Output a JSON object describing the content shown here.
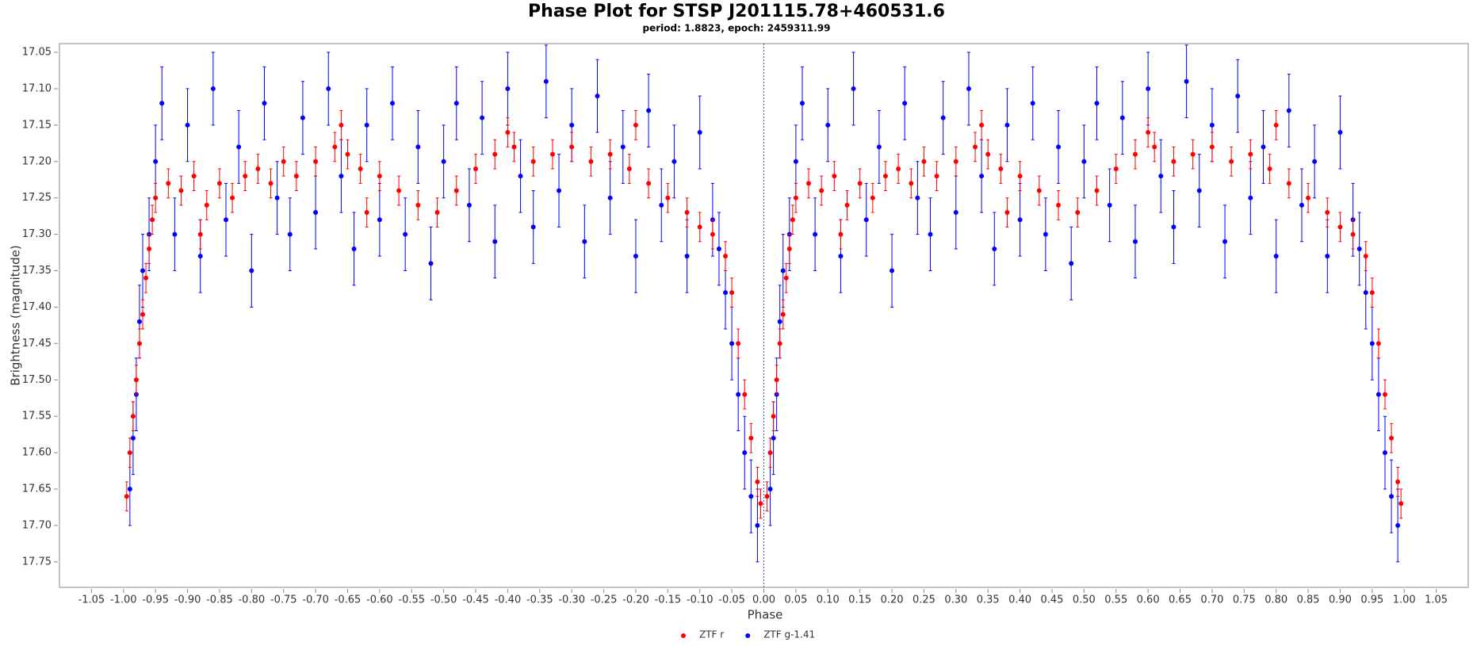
{
  "chart_data": {
    "type": "scatter",
    "title": "Phase Plot for STSP J201115.78+460531.6",
    "subtitle": "period: 1.8823, epoch: 2459311.99",
    "x_label": "Phase",
    "y_label": "Brightness (magnitude)",
    "xlim": [
      -1.1,
      1.1
    ],
    "ylim": [
      17.038,
      17.785
    ],
    "y_inverted": true,
    "grid": false,
    "reference_line_x": 0,
    "legend": "bottom",
    "xticks": [
      -1.05,
      {
        "value": -1,
        "label": "-1.00"
      },
      -0.95,
      {
        "value": -0.9,
        "label": "-0.90"
      },
      -0.85,
      {
        "value": -0.8,
        "label": "-0.80"
      },
      -0.75,
      {
        "value": -0.7,
        "label": "-0.70"
      },
      -0.65,
      {
        "value": -0.6,
        "label": "-0.60"
      },
      -0.55,
      {
        "value": -0.5,
        "label": "-0.50"
      },
      -0.45,
      {
        "value": -0.4,
        "label": "-0.40"
      },
      -0.35,
      {
        "value": -0.3,
        "label": "-0.30"
      },
      -0.25,
      {
        "value": -0.2,
        "label": "-0.20"
      },
      -0.15,
      {
        "value": -0.1,
        "label": "-0.10"
      },
      -0.05,
      {
        "value": 0,
        "label": "0.00"
      },
      0.05,
      {
        "value": 0.1,
        "label": "0.10"
      },
      0.15,
      {
        "value": 0.2,
        "label": "0.20"
      },
      0.25,
      {
        "value": 0.3,
        "label": "0.30"
      },
      0.35,
      {
        "value": 0.4,
        "label": "0.40"
      },
      0.45,
      {
        "value": 0.5,
        "label": "0.50"
      },
      0.55,
      {
        "value": 0.6,
        "label": "0.60"
      },
      0.65,
      {
        "value": 0.7,
        "label": "0.70"
      },
      0.75,
      {
        "value": 0.8,
        "label": "0.80"
      },
      0.85,
      {
        "value": 0.9,
        "label": "0.90"
      },
      0.95,
      {
        "value": 1,
        "label": "1.00"
      },
      1.05
    ],
    "yticks": [
      17.05,
      {
        "value": 17.1,
        "label": "17.10"
      },
      17.15,
      {
        "value": 17.2,
        "label": "17.20"
      },
      17.25,
      {
        "value": 17.3,
        "label": "17.30"
      },
      17.35,
      {
        "value": 17.4,
        "label": "17.40"
      },
      17.45,
      {
        "value": 17.5,
        "label": "17.50"
      },
      17.55,
      {
        "value": 17.6,
        "label": "17.60"
      },
      17.65,
      {
        "value": 17.7,
        "label": "17.70"
      },
      17.75
    ],
    "series": [
      {
        "name": "ZTF r",
        "color": "#ff0000",
        "error": 0.02,
        "x": [
          -0.995,
          -0.99,
          -0.985,
          -0.98,
          -0.975,
          -0.97,
          -0.965,
          -0.96,
          -0.955,
          -0.95,
          -0.93,
          -0.91,
          -0.89,
          -0.87,
          -0.85,
          -0.83,
          -0.81,
          -0.79,
          -0.77,
          -0.75,
          -0.73,
          -0.7,
          -0.67,
          -0.65,
          -0.63,
          -0.6,
          -0.57,
          -0.54,
          -0.51,
          -0.48,
          -0.45,
          -0.42,
          -0.39,
          -0.36,
          -0.33,
          -0.3,
          -0.27,
          -0.24,
          -0.21,
          -0.18,
          -0.15,
          -0.12,
          -0.1,
          -0.08,
          -0.06,
          -0.05,
          -0.04,
          -0.03,
          -0.02,
          -0.01,
          -0.005,
          -0.88,
          -0.62,
          -0.4,
          -0.2,
          -0.66,
          0.005,
          0.01,
          0.015,
          0.02,
          0.025,
          0.03,
          0.035,
          0.04,
          0.045,
          0.05,
          0.07,
          0.09,
          0.11,
          0.13,
          0.15,
          0.17,
          0.19,
          0.21,
          0.23,
          0.25,
          0.27,
          0.3,
          0.33,
          0.35,
          0.37,
          0.4,
          0.43,
          0.46,
          0.49,
          0.52,
          0.55,
          0.58,
          0.61,
          0.64,
          0.67,
          0.7,
          0.73,
          0.76,
          0.79,
          0.82,
          0.85,
          0.88,
          0.9,
          0.92,
          0.94,
          0.95,
          0.96,
          0.97,
          0.98,
          0.99,
          0.995,
          0.12,
          0.38,
          0.6,
          0.8,
          0.34
        ],
        "values": [
          17.66,
          17.6,
          17.55,
          17.5,
          17.45,
          17.41,
          17.36,
          17.32,
          17.28,
          17.25,
          17.23,
          17.24,
          17.22,
          17.26,
          17.23,
          17.25,
          17.22,
          17.21,
          17.23,
          17.2,
          17.22,
          17.2,
          17.18,
          17.19,
          17.21,
          17.22,
          17.24,
          17.26,
          17.27,
          17.24,
          17.21,
          17.19,
          17.18,
          17.2,
          17.19,
          17.18,
          17.2,
          17.19,
          17.21,
          17.23,
          17.25,
          17.27,
          17.29,
          17.3,
          17.33,
          17.38,
          17.45,
          17.52,
          17.58,
          17.64,
          17.67,
          17.3,
          17.27,
          17.16,
          17.15,
          17.15,
          17.66,
          17.6,
          17.55,
          17.5,
          17.45,
          17.41,
          17.36,
          17.32,
          17.28,
          17.25,
          17.23,
          17.24,
          17.22,
          17.26,
          17.23,
          17.25,
          17.22,
          17.21,
          17.23,
          17.2,
          17.22,
          17.2,
          17.18,
          17.19,
          17.21,
          17.22,
          17.24,
          17.26,
          17.27,
          17.24,
          17.21,
          17.19,
          17.18,
          17.2,
          17.19,
          17.18,
          17.2,
          17.19,
          17.21,
          17.23,
          17.25,
          17.27,
          17.29,
          17.3,
          17.33,
          17.38,
          17.45,
          17.52,
          17.58,
          17.64,
          17.67,
          17.3,
          17.27,
          17.16,
          17.15,
          17.15
        ]
      },
      {
        "name": "ZTF g-1.41",
        "color": "#0000ff",
        "error": 0.05,
        "x": [
          -0.99,
          -0.985,
          -0.98,
          -0.975,
          -0.97,
          -0.96,
          -0.95,
          -0.94,
          -0.92,
          -0.9,
          -0.88,
          -0.86,
          -0.84,
          -0.82,
          -0.8,
          -0.78,
          -0.76,
          -0.74,
          -0.72,
          -0.7,
          -0.68,
          -0.66,
          -0.64,
          -0.62,
          -0.6,
          -0.58,
          -0.56,
          -0.54,
          -0.52,
          -0.5,
          -0.48,
          -0.46,
          -0.44,
          -0.42,
          -0.4,
          -0.38,
          -0.36,
          -0.34,
          -0.32,
          -0.3,
          -0.28,
          -0.26,
          -0.24,
          -0.22,
          -0.2,
          -0.18,
          -0.16,
          -0.14,
          -0.12,
          -0.1,
          -0.08,
          -0.07,
          -0.06,
          -0.05,
          -0.04,
          -0.03,
          -0.02,
          -0.01,
          0.01,
          0.015,
          0.02,
          0.025,
          0.03,
          0.04,
          0.05,
          0.06,
          0.08,
          0.1,
          0.12,
          0.14,
          0.16,
          0.18,
          0.2,
          0.22,
          0.24,
          0.26,
          0.28,
          0.3,
          0.32,
          0.34,
          0.36,
          0.38,
          0.4,
          0.42,
          0.44,
          0.46,
          0.48,
          0.5,
          0.52,
          0.54,
          0.56,
          0.58,
          0.6,
          0.62,
          0.64,
          0.66,
          0.68,
          0.7,
          0.72,
          0.74,
          0.76,
          0.78,
          0.8,
          0.82,
          0.84,
          0.86,
          0.88,
          0.9,
          0.92,
          0.93,
          0.94,
          0.95,
          0.96,
          0.97,
          0.98,
          0.99
        ],
        "values": [
          17.65,
          17.58,
          17.52,
          17.42,
          17.35,
          17.3,
          17.2,
          17.12,
          17.3,
          17.15,
          17.33,
          17.1,
          17.28,
          17.18,
          17.35,
          17.12,
          17.25,
          17.3,
          17.14,
          17.27,
          17.1,
          17.22,
          17.32,
          17.15,
          17.28,
          17.12,
          17.3,
          17.18,
          17.34,
          17.2,
          17.12,
          17.26,
          17.14,
          17.31,
          17.1,
          17.22,
          17.29,
          17.09,
          17.24,
          17.15,
          17.31,
          17.11,
          17.25,
          17.18,
          17.33,
          17.13,
          17.26,
          17.2,
          17.33,
          17.16,
          17.28,
          17.32,
          17.38,
          17.45,
          17.52,
          17.6,
          17.66,
          17.7,
          17.65,
          17.58,
          17.52,
          17.42,
          17.35,
          17.3,
          17.2,
          17.12,
          17.3,
          17.15,
          17.33,
          17.1,
          17.28,
          17.18,
          17.35,
          17.12,
          17.25,
          17.3,
          17.14,
          17.27,
          17.1,
          17.22,
          17.32,
          17.15,
          17.28,
          17.12,
          17.3,
          17.18,
          17.34,
          17.2,
          17.12,
          17.26,
          17.14,
          17.31,
          17.1,
          17.22,
          17.29,
          17.09,
          17.24,
          17.15,
          17.31,
          17.11,
          17.25,
          17.18,
          17.33,
          17.13,
          17.26,
          17.2,
          17.33,
          17.16,
          17.28,
          17.32,
          17.38,
          17.45,
          17.52,
          17.6,
          17.66,
          17.7
        ]
      }
    ]
  }
}
